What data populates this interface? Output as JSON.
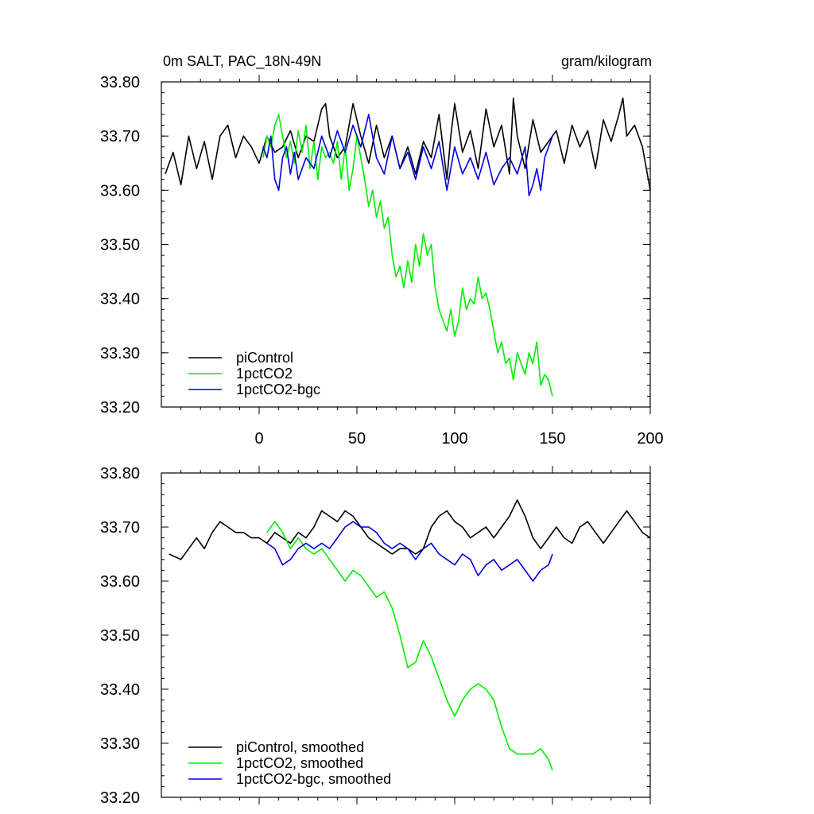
{
  "chart_data": [
    {
      "type": "line",
      "title": "0m SALT, PAC_18N-49N",
      "units": "gram/kilogram",
      "xlim": [
        -50,
        200
      ],
      "ylim": [
        33.2,
        33.8
      ],
      "xticks": [
        0,
        50,
        100,
        150,
        200
      ],
      "xtick_labels": [
        "0",
        "50",
        "100",
        "150",
        "200"
      ],
      "yticks": [
        33.2,
        33.3,
        33.4,
        33.5,
        33.6,
        33.7,
        33.8
      ],
      "ytick_labels": [
        "33.20",
        "33.30",
        "33.40",
        "33.50",
        "33.60",
        "33.70",
        "33.80"
      ],
      "legend_position": "bottom-left",
      "series": [
        {
          "name": "piControl",
          "color": "#000000",
          "x": [
            -48,
            -44,
            -40,
            -36,
            -32,
            -28,
            -24,
            -20,
            -16,
            -12,
            -8,
            -4,
            0,
            4,
            8,
            12,
            16,
            20,
            24,
            28,
            32,
            34,
            36,
            40,
            44,
            48,
            52,
            56,
            60,
            64,
            68,
            72,
            76,
            80,
            84,
            88,
            92,
            96,
            98,
            100,
            104,
            108,
            112,
            116,
            120,
            124,
            128,
            130,
            132,
            136,
            140,
            144,
            148,
            152,
            156,
            160,
            164,
            168,
            172,
            176,
            180,
            184,
            186,
            188,
            192,
            196,
            200
          ],
          "y": [
            33.63,
            33.67,
            33.61,
            33.7,
            33.64,
            33.69,
            33.62,
            33.7,
            33.72,
            33.66,
            33.7,
            33.68,
            33.65,
            33.7,
            33.67,
            33.68,
            33.71,
            33.66,
            33.7,
            33.69,
            33.75,
            33.76,
            33.7,
            33.66,
            33.68,
            33.76,
            33.7,
            33.65,
            33.72,
            33.66,
            33.7,
            33.64,
            33.68,
            33.63,
            33.69,
            33.66,
            33.74,
            33.62,
            33.7,
            33.76,
            33.67,
            33.71,
            33.64,
            33.75,
            33.68,
            33.72,
            33.63,
            33.77,
            33.7,
            33.64,
            33.73,
            33.67,
            33.69,
            33.71,
            33.65,
            33.72,
            33.68,
            33.71,
            33.64,
            33.73,
            33.69,
            33.74,
            33.77,
            33.7,
            33.72,
            33.68,
            33.6
          ]
        },
        {
          "name": "1pctCO2",
          "color": "#00ee00",
          "x": [
            2,
            4,
            6,
            8,
            10,
            12,
            14,
            16,
            18,
            20,
            22,
            24,
            26,
            28,
            30,
            32,
            34,
            36,
            38,
            40,
            42,
            44,
            46,
            48,
            50,
            52,
            54,
            56,
            58,
            60,
            62,
            64,
            66,
            68,
            70,
            72,
            74,
            76,
            78,
            80,
            82,
            84,
            86,
            88,
            90,
            92,
            94,
            96,
            98,
            100,
            102,
            104,
            106,
            108,
            110,
            112,
            114,
            116,
            118,
            120,
            122,
            124,
            126,
            128,
            130,
            132,
            134,
            136,
            138,
            140,
            142,
            144,
            146,
            148,
            150
          ],
          "y": [
            33.66,
            33.7,
            33.68,
            33.72,
            33.74,
            33.7,
            33.66,
            33.69,
            33.65,
            33.71,
            33.67,
            33.72,
            33.64,
            33.69,
            33.62,
            33.68,
            33.66,
            33.67,
            33.65,
            33.69,
            33.62,
            33.68,
            33.6,
            33.64,
            33.7,
            33.66,
            33.62,
            33.57,
            33.6,
            33.55,
            33.58,
            33.53,
            33.55,
            33.48,
            33.44,
            33.46,
            33.42,
            33.47,
            33.43,
            33.5,
            33.46,
            33.52,
            33.48,
            33.5,
            33.42,
            33.38,
            33.36,
            33.34,
            33.38,
            33.33,
            33.36,
            33.42,
            33.38,
            33.4,
            33.39,
            33.44,
            33.4,
            33.41,
            33.38,
            33.34,
            33.3,
            33.32,
            33.28,
            33.29,
            33.25,
            33.3,
            33.28,
            33.26,
            33.3,
            33.28,
            33.32,
            33.24,
            33.26,
            33.25,
            33.22
          ]
        },
        {
          "name": "1pctCO2-bgc",
          "color": "#0000dd",
          "x": [
            2,
            4,
            6,
            8,
            10,
            12,
            14,
            16,
            18,
            20,
            24,
            28,
            32,
            36,
            40,
            44,
            48,
            52,
            56,
            60,
            64,
            68,
            72,
            76,
            80,
            84,
            88,
            92,
            96,
            100,
            104,
            108,
            112,
            116,
            120,
            124,
            128,
            132,
            136,
            138,
            140,
            142,
            144,
            146,
            148,
            150
          ],
          "y": [
            33.68,
            33.66,
            33.7,
            33.62,
            33.6,
            33.66,
            33.68,
            33.63,
            33.67,
            33.62,
            33.66,
            33.64,
            33.7,
            33.66,
            33.71,
            33.67,
            33.72,
            33.68,
            33.74,
            33.66,
            33.63,
            33.7,
            33.64,
            33.67,
            33.62,
            33.68,
            33.64,
            33.69,
            33.6,
            33.68,
            33.63,
            33.66,
            33.62,
            33.67,
            33.61,
            33.64,
            33.66,
            33.63,
            33.68,
            33.59,
            33.61,
            33.64,
            33.6,
            33.66,
            33.68,
            33.7
          ]
        }
      ],
      "legend": [
        "piControl",
        "1pctCO2",
        "1pctCO2-bgc"
      ]
    },
    {
      "type": "line",
      "xlim": [
        -50,
        200
      ],
      "ylim": [
        33.2,
        33.8
      ],
      "xticks": [
        0,
        50,
        100,
        150,
        200
      ],
      "yticks": [
        33.2,
        33.3,
        33.4,
        33.5,
        33.6,
        33.7,
        33.8
      ],
      "ytick_labels": [
        "33.20",
        "33.30",
        "33.40",
        "33.50",
        "33.60",
        "33.70",
        "33.80"
      ],
      "legend_position": "bottom-left",
      "series": [
        {
          "name": "piControl, smoothed",
          "color": "#000000",
          "x": [
            -46,
            -40,
            -36,
            -32,
            -28,
            -24,
            -20,
            -16,
            -12,
            -8,
            -4,
            0,
            4,
            8,
            12,
            16,
            20,
            24,
            28,
            32,
            36,
            40,
            44,
            48,
            52,
            56,
            60,
            64,
            68,
            72,
            76,
            80,
            84,
            88,
            92,
            96,
            100,
            104,
            108,
            112,
            116,
            120,
            124,
            128,
            132,
            136,
            140,
            144,
            148,
            152,
            156,
            160,
            164,
            168,
            172,
            176,
            180,
            184,
            188,
            192,
            196,
            200
          ],
          "y": [
            33.65,
            33.64,
            33.66,
            33.68,
            33.66,
            33.69,
            33.71,
            33.7,
            33.69,
            33.69,
            33.68,
            33.68,
            33.67,
            33.69,
            33.68,
            33.67,
            33.69,
            33.68,
            33.7,
            33.73,
            33.72,
            33.71,
            33.73,
            33.72,
            33.7,
            33.68,
            33.67,
            33.66,
            33.65,
            33.66,
            33.66,
            33.65,
            33.66,
            33.7,
            33.72,
            33.73,
            33.71,
            33.7,
            33.68,
            33.69,
            33.7,
            33.68,
            33.7,
            33.72,
            33.75,
            33.72,
            33.68,
            33.66,
            33.68,
            33.7,
            33.68,
            33.67,
            33.7,
            33.71,
            33.69,
            33.67,
            33.69,
            33.71,
            33.73,
            33.71,
            33.69,
            33.68
          ]
        },
        {
          "name": "1pctCO2, smoothed",
          "color": "#00ee00",
          "x": [
            4,
            8,
            12,
            16,
            20,
            24,
            28,
            32,
            36,
            40,
            44,
            48,
            52,
            56,
            60,
            64,
            68,
            72,
            76,
            80,
            84,
            88,
            92,
            96,
            100,
            104,
            108,
            112,
            116,
            120,
            124,
            128,
            132,
            136,
            140,
            144,
            148,
            150
          ],
          "y": [
            33.69,
            33.71,
            33.69,
            33.66,
            33.68,
            33.66,
            33.65,
            33.66,
            33.64,
            33.62,
            33.6,
            33.62,
            33.61,
            33.59,
            33.57,
            33.58,
            33.55,
            33.5,
            33.44,
            33.45,
            33.49,
            33.46,
            33.42,
            33.38,
            33.35,
            33.38,
            33.4,
            33.41,
            33.4,
            33.38,
            33.33,
            33.29,
            33.28,
            33.28,
            33.28,
            33.29,
            33.27,
            33.25
          ]
        },
        {
          "name": "1pctCO2-bgc, smoothed",
          "color": "#0000dd",
          "x": [
            4,
            8,
            12,
            16,
            20,
            24,
            28,
            32,
            36,
            40,
            44,
            48,
            52,
            56,
            60,
            64,
            68,
            72,
            76,
            80,
            84,
            88,
            92,
            96,
            100,
            104,
            108,
            112,
            116,
            120,
            124,
            128,
            132,
            136,
            140,
            144,
            148,
            150
          ],
          "y": [
            33.67,
            33.66,
            33.63,
            33.64,
            33.66,
            33.67,
            33.66,
            33.67,
            33.66,
            33.68,
            33.7,
            33.71,
            33.7,
            33.7,
            33.69,
            33.67,
            33.66,
            33.67,
            33.66,
            33.64,
            33.66,
            33.67,
            33.65,
            33.64,
            33.63,
            33.65,
            33.64,
            33.61,
            33.63,
            33.64,
            33.62,
            33.63,
            33.64,
            33.62,
            33.6,
            33.62,
            33.63,
            33.65
          ]
        }
      ],
      "legend": [
        "piControl, smoothed",
        "1pctCO2, smoothed",
        "1pctCO2-bgc, smoothed"
      ]
    }
  ]
}
